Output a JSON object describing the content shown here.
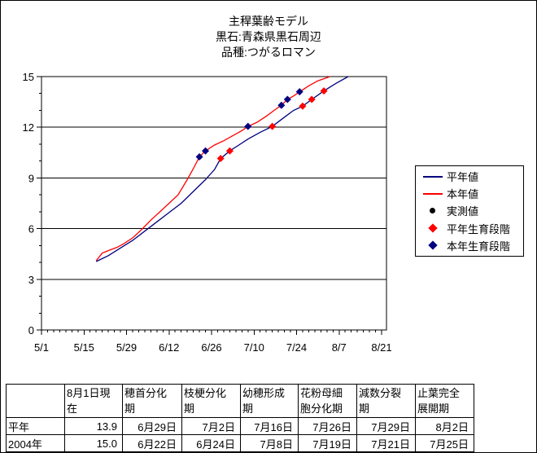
{
  "title_block": {
    "title": "主稈葉齢モデル",
    "subtitle1": "黒石:青森県黒石周辺",
    "subtitle2": "品種:つがるロマン"
  },
  "colors": {
    "normal_line": "#000080",
    "this_year_line": "#ff0000",
    "observed": "#000000",
    "axis": "#000000",
    "background": "#ffffff"
  },
  "chart_data": {
    "type": "line",
    "title": "主稈葉齢モデル",
    "subtitle1": "黒石:青森県黒石周辺",
    "subtitle2": "品種:つがるロマン",
    "ylabel": "",
    "xlabel": "",
    "grid": "horizontal-major",
    "legend_position": "right",
    "y_axis": {
      "range": [
        0,
        15
      ],
      "major_ticks": [
        0,
        3,
        6,
        9,
        12,
        15
      ],
      "minor_step": 1
    },
    "x_axis": {
      "tick_labels": [
        "5/1",
        "5/15",
        "5/29",
        "6/12",
        "6/26",
        "7/10",
        "7/24",
        "8/7",
        "8/21"
      ],
      "tick_days": [
        0,
        14,
        28,
        42,
        56,
        70,
        84,
        98,
        112
      ],
      "minor_step_days": 2,
      "range_days": [
        0,
        113.5
      ]
    },
    "series": [
      {
        "name": "平年値",
        "type": "line",
        "color": "#000080",
        "points": [
          [
            18,
            4.05
          ],
          [
            22,
            4.4
          ],
          [
            26,
            4.85
          ],
          [
            30,
            5.3
          ],
          [
            34,
            5.85
          ],
          [
            38,
            6.4
          ],
          [
            42,
            6.95
          ],
          [
            46,
            7.5
          ],
          [
            50,
            8.2
          ],
          [
            54,
            8.9
          ],
          [
            57,
            9.5
          ],
          [
            59,
            10.15
          ],
          [
            62,
            10.6
          ],
          [
            65,
            10.95
          ],
          [
            68,
            11.3
          ],
          [
            72,
            11.7
          ],
          [
            76,
            12.05
          ],
          [
            80,
            12.6
          ],
          [
            83,
            13.0
          ],
          [
            86,
            13.25
          ],
          [
            89,
            13.65
          ],
          [
            93,
            14.15
          ],
          [
            97,
            14.6
          ],
          [
            101,
            15.0
          ]
        ]
      },
      {
        "name": "本年値",
        "type": "line",
        "color": "#ff0000",
        "points": [
          [
            18,
            4.1
          ],
          [
            20,
            4.55
          ],
          [
            22,
            4.7
          ],
          [
            25,
            4.9
          ],
          [
            27,
            5.1
          ],
          [
            30,
            5.45
          ],
          [
            33,
            5.95
          ],
          [
            36,
            6.5
          ],
          [
            39,
            7.0
          ],
          [
            42,
            7.5
          ],
          [
            45,
            8.0
          ],
          [
            48,
            8.9
          ],
          [
            50,
            9.55
          ],
          [
            52,
            10.25
          ],
          [
            54,
            10.6
          ],
          [
            57,
            10.95
          ],
          [
            60,
            11.2
          ],
          [
            63,
            11.5
          ],
          [
            66,
            11.8
          ],
          [
            68,
            12.05
          ],
          [
            71,
            12.3
          ],
          [
            74,
            12.65
          ],
          [
            77,
            13.05
          ],
          [
            79,
            13.3
          ],
          [
            81,
            13.65
          ],
          [
            83,
            13.85
          ],
          [
            85,
            14.1
          ],
          [
            88,
            14.45
          ],
          [
            91,
            14.75
          ],
          [
            95,
            15.0
          ]
        ]
      },
      {
        "name": "実測値",
        "type": "scatter-circle",
        "color": "#000000",
        "points": []
      },
      {
        "name": "平年生育段階",
        "type": "scatter-diamond",
        "color": "#ff0000",
        "dates": [
          "6月29日",
          "7月2日",
          "7月16日",
          "7月26日",
          "7月29日",
          "8月2日"
        ],
        "points": [
          [
            59,
            10.15
          ],
          [
            62,
            10.6
          ],
          [
            76,
            12.05
          ],
          [
            86,
            13.25
          ],
          [
            89,
            13.65
          ],
          [
            93,
            14.15
          ]
        ]
      },
      {
        "name": "本年生育段階",
        "type": "scatter-diamond",
        "color": "#000080",
        "dates": [
          "6月22日",
          "6月24日",
          "7月8日",
          "7月19日",
          "7月21日",
          "7月25日"
        ],
        "points": [
          [
            52,
            10.25
          ],
          [
            54,
            10.6
          ],
          [
            68,
            12.05
          ],
          [
            79,
            13.3
          ],
          [
            81,
            13.65
          ],
          [
            85,
            14.1
          ]
        ]
      }
    ]
  },
  "legend": {
    "items": [
      {
        "label": "平年値",
        "marker": "navy-line"
      },
      {
        "label": "本年値",
        "marker": "red-line"
      },
      {
        "label": "実測値",
        "marker": "black-dot"
      },
      {
        "label": "平年生育段階",
        "marker": "red-diamond"
      },
      {
        "label": "本年生育段階",
        "marker": "navy-diamond"
      }
    ]
  },
  "table": {
    "header": [
      "",
      "8月1日現\n在",
      "穂首分化\n期",
      "枝梗分化\n期",
      "幼穂形成\n期",
      "花粉母細\n胞分化期",
      "減数分裂\n期",
      "止葉完全\n展開期"
    ],
    "rows": [
      {
        "label": "平年",
        "values": [
          "13.9",
          "6月29日",
          "7月2日",
          "7月16日",
          "7月26日",
          "7月29日",
          "8月2日"
        ]
      },
      {
        "label": "2004年",
        "values": [
          "15.0",
          "6月22日",
          "6月24日",
          "7月8日",
          "7月19日",
          "7月21日",
          "7月25日"
        ]
      }
    ]
  }
}
